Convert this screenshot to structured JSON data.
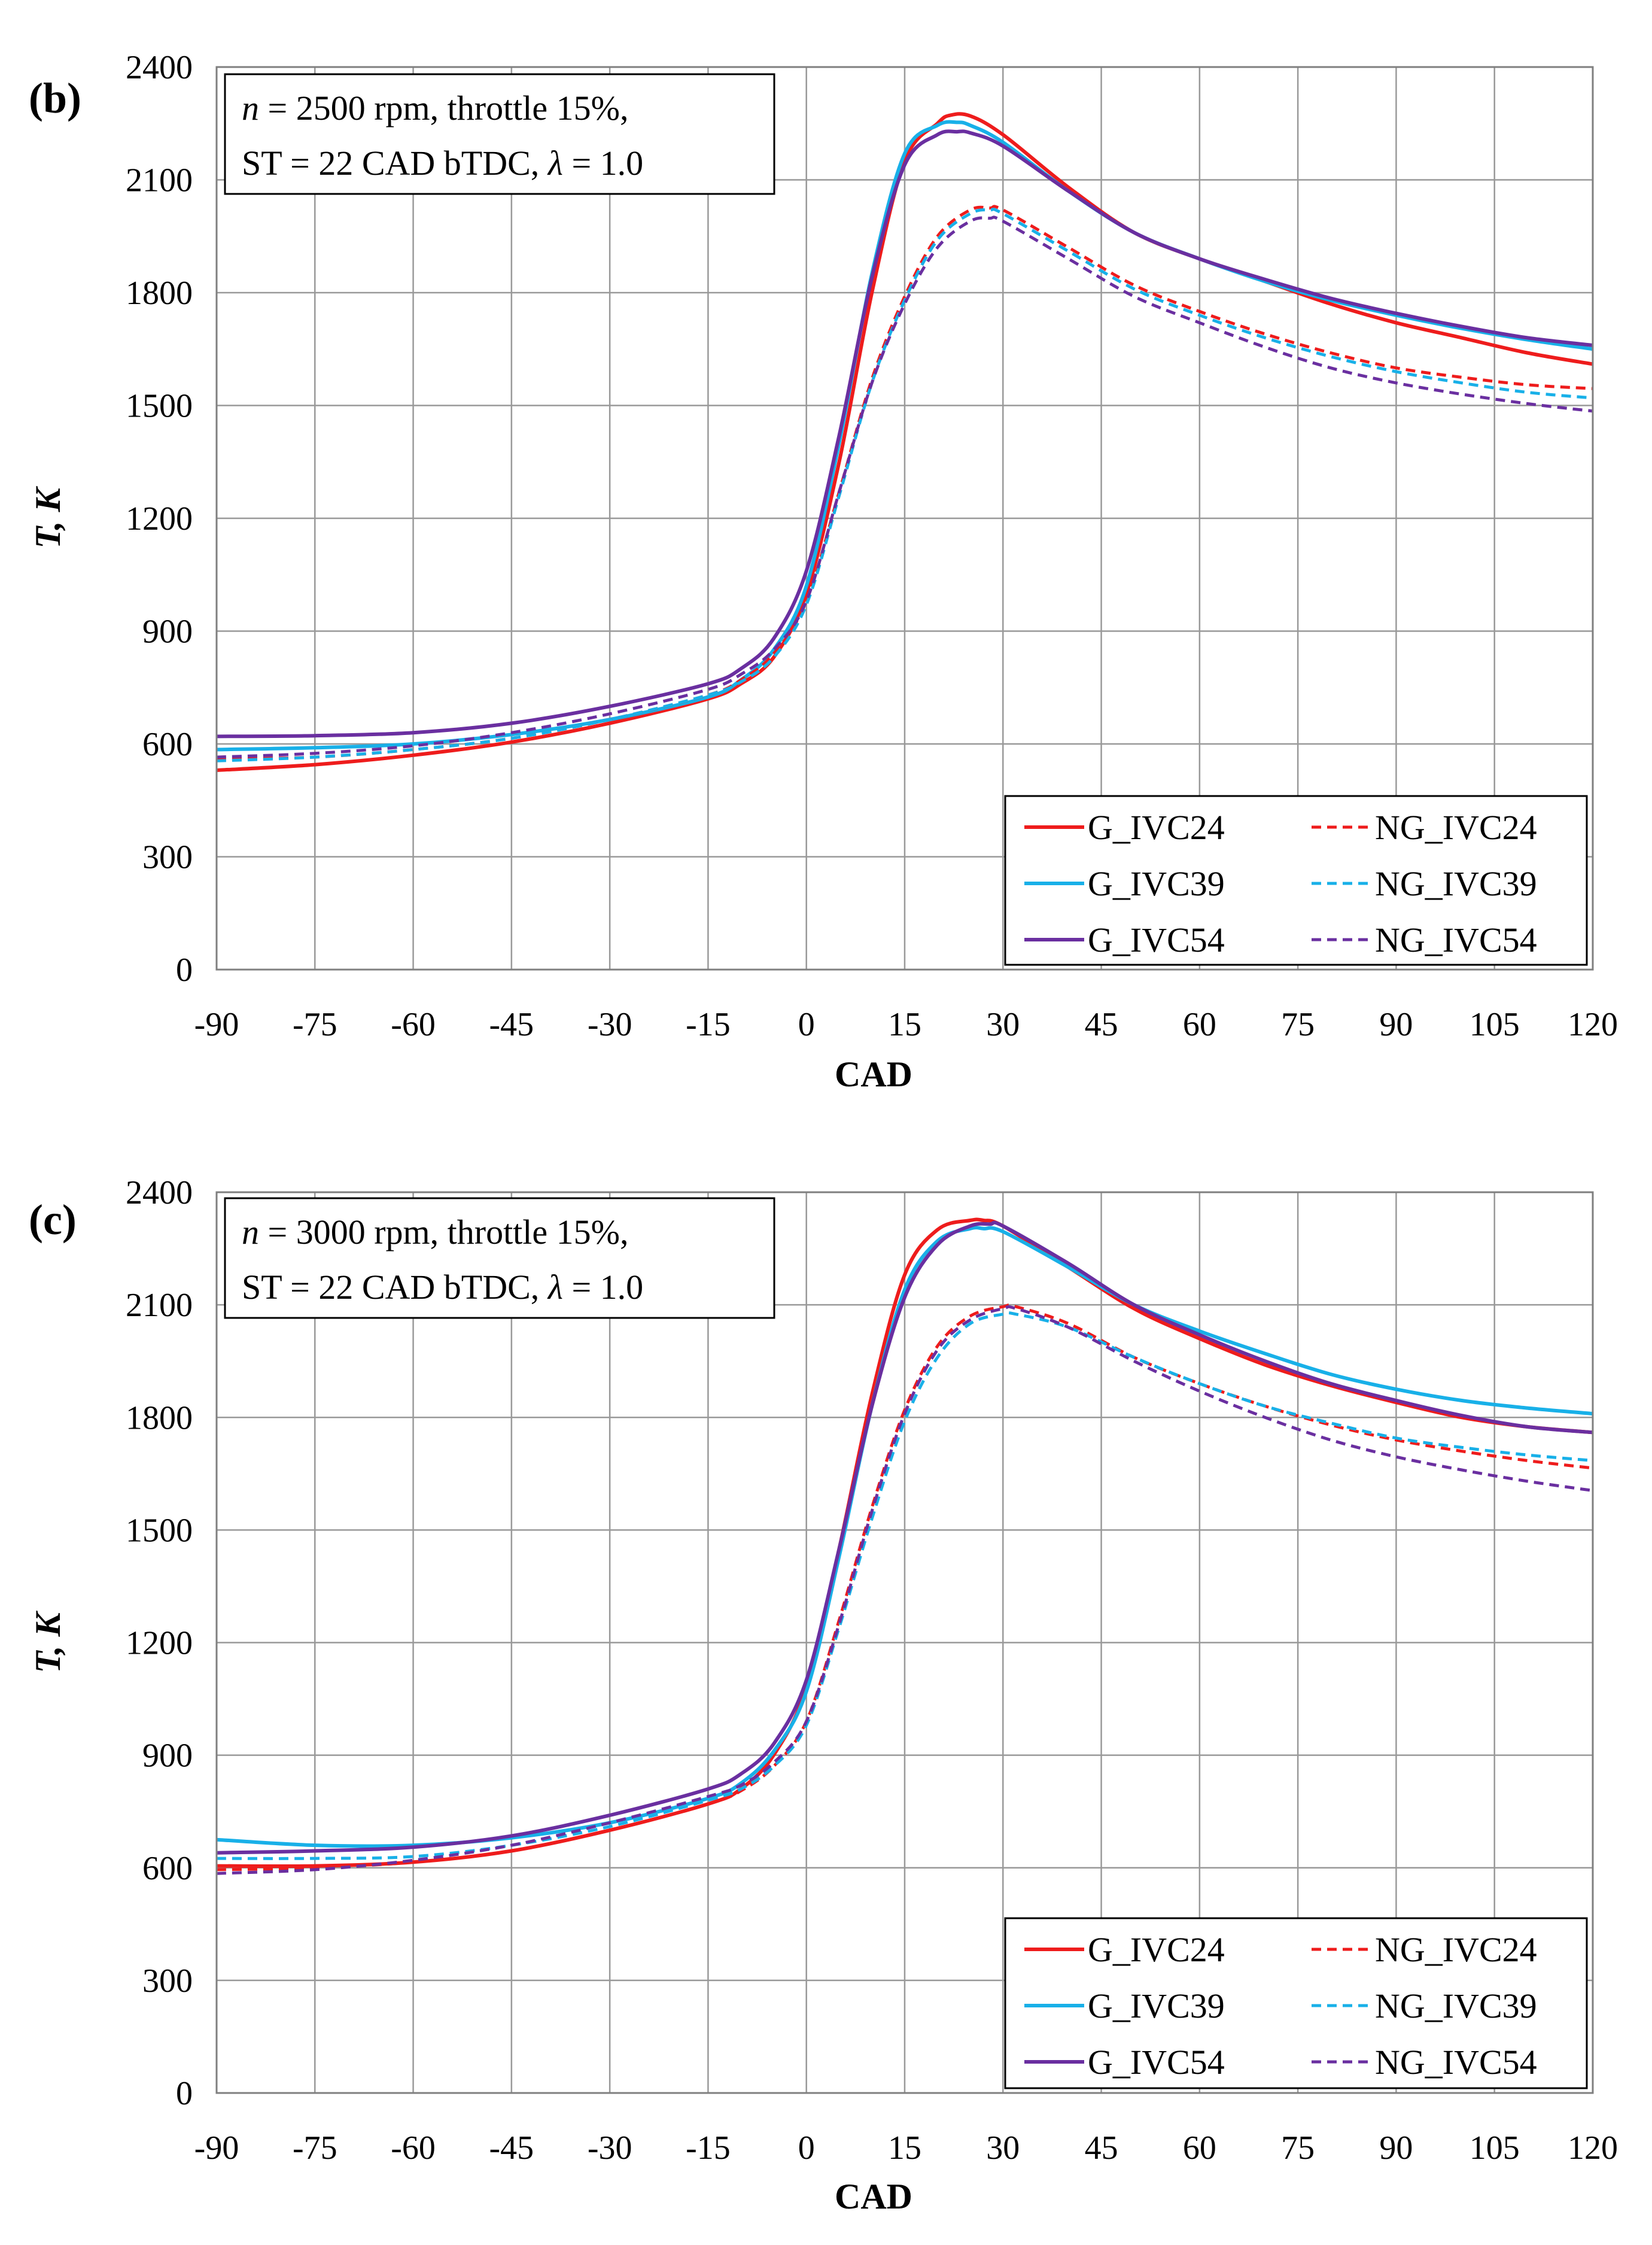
{
  "colors": {
    "G_IVC24": "#ee1c1c",
    "G_IVC39": "#18b0e8",
    "G_IVC54": "#6a2fa0",
    "NG_IVC24": "#ee1c1c",
    "NG_IVC39": "#18b0e8",
    "NG_IVC54": "#6a2fa0",
    "grid": "#999999",
    "axis": "#7f7f7f"
  },
  "chart_data": [
    {
      "type": "line",
      "panel_label": "(b)",
      "annotation": {
        "line1_var": "n",
        "line1_rest": " = 2500 rpm, throttle 15%,",
        "line2_start": "ST = 22 CAD bTDC, ",
        "line2_var": "λ",
        "line2_rest": " = 1.0"
      },
      "xlabel": "CAD",
      "ylabel": "T, K",
      "xlim": [
        -90,
        120
      ],
      "ylim": [
        0,
        2400
      ],
      "xticks": [
        "-90",
        "-75",
        "-60",
        "-45",
        "-30",
        "-15",
        "0",
        "15",
        "30",
        "45",
        "60",
        "75",
        "90",
        "105",
        "120"
      ],
      "yticks": [
        "0",
        "300",
        "600",
        "900",
        "1200",
        "1500",
        "1800",
        "2100",
        "2400"
      ],
      "legend": [
        "G_IVC24",
        "NG_IVC24",
        "G_IVC39",
        "NG_IVC39",
        "G_IVC54",
        "NG_IVC54"
      ],
      "legend_position": "bottom-right",
      "series": [
        {
          "name": "G_IVC24",
          "dashed": false,
          "x": [
            -90,
            -75,
            -60,
            -45,
            -30,
            -15,
            -10,
            -5,
            0,
            5,
            10,
            15,
            20,
            22,
            25,
            30,
            40,
            50,
            60,
            70,
            80,
            90,
            100,
            110,
            120
          ],
          "y": [
            530,
            545,
            570,
            605,
            655,
            720,
            760,
            830,
            1000,
            1350,
            1800,
            2150,
            2250,
            2272,
            2270,
            2220,
            2080,
            1960,
            1890,
            1830,
            1770,
            1720,
            1680,
            1640,
            1610
          ]
        },
        {
          "name": "G_IVC39",
          "dashed": false,
          "x": [
            -90,
            -75,
            -60,
            -45,
            -30,
            -15,
            -10,
            -5,
            0,
            5,
            10,
            15,
            20,
            23,
            25,
            30,
            40,
            50,
            60,
            70,
            80,
            90,
            100,
            110,
            120
          ],
          "y": [
            585,
            590,
            600,
            625,
            665,
            725,
            770,
            850,
            1020,
            1400,
            1850,
            2170,
            2245,
            2253,
            2245,
            2200,
            2070,
            1960,
            1890,
            1830,
            1780,
            1740,
            1705,
            1675,
            1650
          ]
        },
        {
          "name": "G_IVC54",
          "dashed": false,
          "x": [
            -90,
            -75,
            -60,
            -45,
            -30,
            -15,
            -10,
            -5,
            0,
            5,
            10,
            15,
            20,
            23,
            25,
            30,
            40,
            50,
            60,
            70,
            80,
            90,
            100,
            110,
            120
          ],
          "y": [
            620,
            622,
            630,
            655,
            700,
            760,
            800,
            880,
            1060,
            1420,
            1840,
            2140,
            2220,
            2228,
            2225,
            2190,
            2070,
            1960,
            1890,
            1835,
            1785,
            1745,
            1710,
            1680,
            1660
          ]
        },
        {
          "name": "NG_IVC24",
          "dashed": false,
          "dash": true,
          "x": [
            -90,
            -75,
            -60,
            -45,
            -30,
            -15,
            -10,
            -5,
            0,
            5,
            10,
            15,
            20,
            25,
            28,
            30,
            40,
            50,
            60,
            70,
            80,
            90,
            100,
            110,
            120
          ],
          "y": [
            560,
            565,
            585,
            615,
            665,
            730,
            770,
            840,
            980,
            1270,
            1570,
            1790,
            1950,
            2020,
            2025,
            2020,
            1920,
            1820,
            1750,
            1690,
            1640,
            1600,
            1575,
            1555,
            1545
          ]
        },
        {
          "name": "NG_IVC39",
          "dashed": true,
          "x": [
            -90,
            -75,
            -60,
            -45,
            -30,
            -15,
            -10,
            -5,
            0,
            5,
            10,
            15,
            20,
            25,
            28,
            30,
            40,
            50,
            60,
            70,
            80,
            90,
            100,
            110,
            120
          ],
          "y": [
            555,
            565,
            585,
            615,
            665,
            730,
            765,
            830,
            970,
            1260,
            1560,
            1780,
            1940,
            2010,
            2020,
            2010,
            1910,
            1810,
            1740,
            1680,
            1630,
            1590,
            1560,
            1535,
            1520
          ]
        },
        {
          "name": "NG_IVC54",
          "dashed": true,
          "x": [
            -90,
            -75,
            -60,
            -45,
            -30,
            -15,
            -10,
            -5,
            0,
            5,
            10,
            15,
            20,
            25,
            28,
            30,
            40,
            50,
            60,
            70,
            80,
            90,
            100,
            110,
            120
          ],
          "y": [
            565,
            575,
            595,
            630,
            680,
            745,
            785,
            850,
            980,
            1270,
            1560,
            1770,
            1920,
            1990,
            1998,
            1990,
            1890,
            1790,
            1720,
            1655,
            1600,
            1560,
            1530,
            1505,
            1485
          ]
        }
      ]
    },
    {
      "type": "line",
      "panel_label": "(c)",
      "annotation": {
        "line1_var": "n",
        "line1_rest": " = 3000 rpm, throttle 15%,",
        "line2_start": "ST = 22 CAD bTDC, ",
        "line2_var": "λ",
        "line2_rest": " = 1.0"
      },
      "xlabel": "CAD",
      "ylabel": "T, K",
      "xlim": [
        -90,
        120
      ],
      "ylim": [
        0,
        2400
      ],
      "xticks": [
        "-90",
        "-75",
        "-60",
        "-45",
        "-30",
        "-15",
        "0",
        "15",
        "30",
        "45",
        "60",
        "75",
        "90",
        "105",
        "120"
      ],
      "yticks": [
        "0",
        "300",
        "600",
        "900",
        "1200",
        "1500",
        "1800",
        "2100",
        "2400"
      ],
      "legend": [
        "G_IVC24",
        "NG_IVC24",
        "G_IVC39",
        "NG_IVC39",
        "G_IVC54",
        "NG_IVC54"
      ],
      "legend_position": "bottom-right",
      "series": [
        {
          "name": "G_IVC24",
          "dashed": false,
          "x": [
            -90,
            -75,
            -60,
            -45,
            -30,
            -15,
            -10,
            -5,
            0,
            5,
            10,
            15,
            20,
            25,
            27,
            30,
            40,
            50,
            60,
            70,
            80,
            90,
            100,
            110,
            120
          ],
          "y": [
            605,
            605,
            615,
            645,
            700,
            770,
            810,
            900,
            1080,
            1450,
            1860,
            2180,
            2300,
            2325,
            2325,
            2310,
            2200,
            2090,
            2010,
            1940,
            1885,
            1840,
            1800,
            1775,
            1760
          ]
        },
        {
          "name": "G_IVC39",
          "dashed": false,
          "x": [
            -90,
            -75,
            -60,
            -45,
            -30,
            -15,
            -10,
            -5,
            0,
            5,
            10,
            15,
            20,
            25,
            27,
            30,
            40,
            50,
            60,
            70,
            80,
            90,
            100,
            110,
            120
          ],
          "y": [
            675,
            660,
            660,
            680,
            720,
            785,
            825,
            910,
            1070,
            1430,
            1830,
            2140,
            2270,
            2303,
            2303,
            2295,
            2200,
            2100,
            2030,
            1970,
            1915,
            1875,
            1845,
            1825,
            1810
          ]
        },
        {
          "name": "G_IVC54",
          "dashed": false,
          "x": [
            -90,
            -75,
            -60,
            -45,
            -30,
            -15,
            -10,
            -5,
            0,
            5,
            10,
            15,
            20,
            25,
            28,
            30,
            40,
            50,
            60,
            70,
            80,
            90,
            100,
            110,
            120
          ],
          "y": [
            640,
            645,
            655,
            685,
            740,
            810,
            850,
            930,
            1100,
            1450,
            1830,
            2120,
            2260,
            2310,
            2315,
            2310,
            2210,
            2100,
            2020,
            1950,
            1890,
            1845,
            1805,
            1775,
            1760
          ]
        },
        {
          "name": "NG_IVC24",
          "dashed": true,
          "x": [
            -90,
            -75,
            -60,
            -45,
            -30,
            -15,
            -10,
            -5,
            0,
            5,
            10,
            15,
            20,
            25,
            30,
            32,
            40,
            50,
            60,
            70,
            80,
            90,
            100,
            110,
            120
          ],
          "y": [
            595,
            600,
            615,
            645,
            700,
            770,
            805,
            870,
            990,
            1260,
            1560,
            1820,
            1990,
            2070,
            2095,
            2095,
            2050,
            1960,
            1890,
            1830,
            1780,
            1740,
            1710,
            1685,
            1665
          ]
        },
        {
          "name": "NG_IVC39",
          "dashed": true,
          "x": [
            -90,
            -75,
            -60,
            -45,
            -30,
            -15,
            -10,
            -5,
            0,
            5,
            10,
            15,
            20,
            25,
            30,
            32,
            40,
            50,
            60,
            70,
            80,
            90,
            100,
            110,
            120
          ],
          "y": [
            625,
            625,
            630,
            660,
            710,
            780,
            810,
            870,
            980,
            1240,
            1530,
            1790,
            1960,
            2050,
            2075,
            2075,
            2040,
            1960,
            1890,
            1830,
            1785,
            1745,
            1720,
            1700,
            1685
          ]
        },
        {
          "name": "NG_IVC54",
          "dashed": true,
          "x": [
            -90,
            -75,
            -60,
            -45,
            -30,
            -15,
            -10,
            -5,
            0,
            5,
            10,
            15,
            20,
            25,
            30,
            32,
            40,
            50,
            60,
            70,
            80,
            90,
            100,
            110,
            120
          ],
          "y": [
            585,
            595,
            620,
            660,
            720,
            790,
            820,
            880,
            990,
            1250,
            1550,
            1810,
            1980,
            2060,
            2090,
            2090,
            2040,
            1950,
            1870,
            1800,
            1740,
            1695,
            1660,
            1630,
            1605
          ]
        }
      ]
    }
  ]
}
